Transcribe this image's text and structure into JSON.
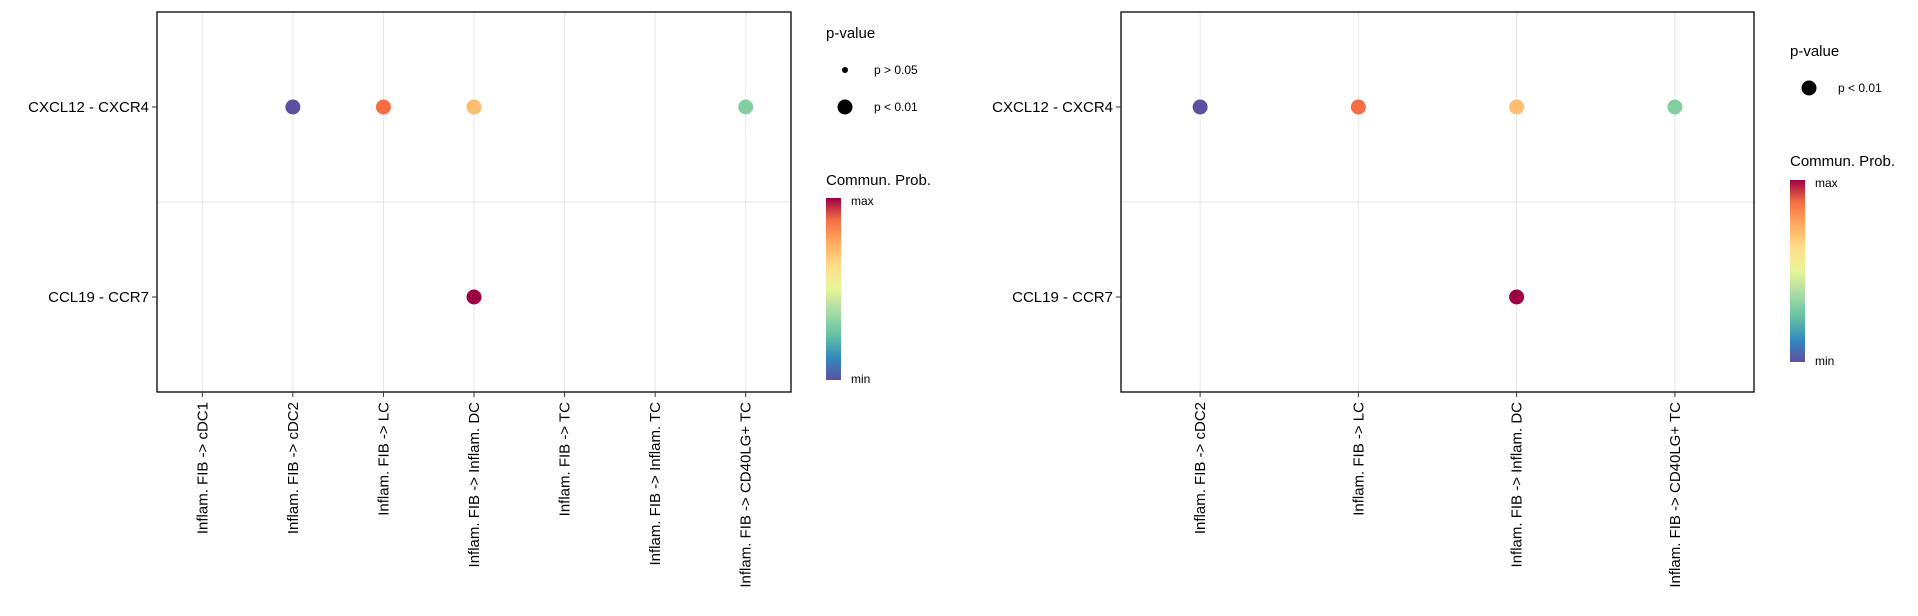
{
  "colors": {
    "purple": "#5e4fa2",
    "orange_red": "#f46d43",
    "yellow_orange": "#fdbe6f",
    "green": "#84cfa1",
    "crimson": "#9e0142",
    "grid": "#e6e6e6",
    "frame": "#000000"
  },
  "chart_data": [
    {
      "type": "scatter",
      "title": "",
      "xlabel": "",
      "ylabel": "",
      "grid": true,
      "legend_placement": "right",
      "categories_x": [
        "Inflam. FIB -> cDC1",
        "Inflam. FIB -> cDC2",
        "Inflam. FIB -> LC",
        "Inflam. FIB -> Inflam. DC",
        "Inflam. FIB -> TC",
        "Inflam. FIB -> Inflam. TC",
        "Inflam. FIB -> CD40LG+ TC"
      ],
      "categories_y": [
        "CXCL12 - CXCR4",
        "CCL19 - CCR7"
      ],
      "points": [
        {
          "x": "Inflam. FIB -> cDC2",
          "y": "CXCL12 - CXCR4",
          "prob": 0.0,
          "pvalue": "p < 0.01",
          "color": "#5e4fa2"
        },
        {
          "x": "Inflam. FIB -> LC",
          "y": "CXCL12 - CXCR4",
          "prob": 0.8,
          "pvalue": "p < 0.01",
          "color": "#f46d43"
        },
        {
          "x": "Inflam. FIB -> Inflam. DC",
          "y": "CXCL12 - CXCR4",
          "prob": 0.6,
          "pvalue": "p < 0.01",
          "color": "#fdbe6f"
        },
        {
          "x": "Inflam. FIB -> CD40LG+ TC",
          "y": "CXCL12 - CXCR4",
          "prob": 0.3,
          "pvalue": "p < 0.01",
          "color": "#84cfa1"
        },
        {
          "x": "Inflam. FIB -> Inflam. DC",
          "y": "CCL19 - CCR7",
          "prob": 1.0,
          "pvalue": "p < 0.01",
          "color": "#9e0142"
        }
      ],
      "legend_size": {
        "title": "p-value",
        "items": [
          "p > 0.05",
          "p < 0.01"
        ]
      },
      "legend_color": {
        "title": "Commun. Prob.",
        "max_label": "max",
        "min_label": "min"
      }
    },
    {
      "type": "scatter",
      "title": "",
      "xlabel": "",
      "ylabel": "",
      "grid": true,
      "legend_placement": "right",
      "categories_x": [
        "Inflam. FIB -> cDC2",
        "Inflam. FIB -> LC",
        "Inflam. FIB -> Inflam. DC",
        "Inflam. FIB -> CD40LG+ TC"
      ],
      "categories_y": [
        "CXCL12 - CXCR4",
        "CCL19 - CCR7"
      ],
      "points": [
        {
          "x": "Inflam. FIB -> cDC2",
          "y": "CXCL12 - CXCR4",
          "prob": 0.0,
          "pvalue": "p < 0.01",
          "color": "#5e4fa2"
        },
        {
          "x": "Inflam. FIB -> LC",
          "y": "CXCL12 - CXCR4",
          "prob": 0.8,
          "pvalue": "p < 0.01",
          "color": "#f46d43"
        },
        {
          "x": "Inflam. FIB -> Inflam. DC",
          "y": "CXCL12 - CXCR4",
          "prob": 0.6,
          "pvalue": "p < 0.01",
          "color": "#fdbe6f"
        },
        {
          "x": "Inflam. FIB -> CD40LG+ TC",
          "y": "CXCL12 - CXCR4",
          "prob": 0.3,
          "pvalue": "p < 0.01",
          "color": "#84cfa1"
        },
        {
          "x": "Inflam. FIB -> Inflam. DC",
          "y": "CCL19 - CCR7",
          "prob": 1.0,
          "pvalue": "p < 0.01",
          "color": "#9e0142"
        }
      ],
      "legend_size": {
        "title": "p-value",
        "items": [
          "p < 0.01"
        ]
      },
      "legend_color": {
        "title": "Commun. Prob.",
        "max_label": "max",
        "min_label": "min"
      }
    }
  ]
}
